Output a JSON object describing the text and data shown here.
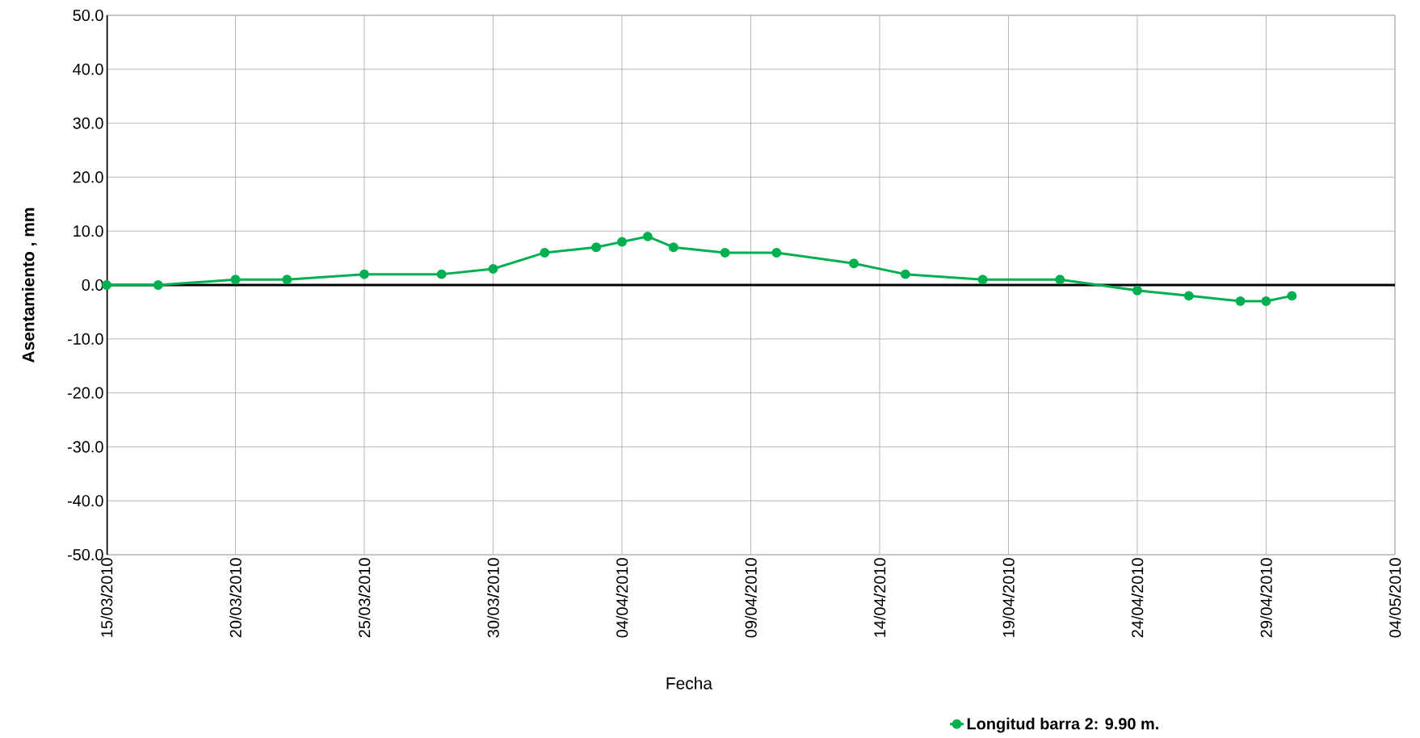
{
  "chart_data": {
    "type": "line",
    "xlabel": "Fecha",
    "ylabel": "Asentamiento , mm",
    "series": [
      {
        "name": "**Longitud barra 2: 9.90 m.**",
        "color": "#00b050",
        "x": [
          "2010-03-15",
          "2010-03-17",
          "2010-03-20",
          "2010-03-22",
          "2010-03-25",
          "2010-03-28",
          "2010-03-30",
          "2010-04-01",
          "2010-04-03",
          "2010-04-04",
          "2010-04-05",
          "2010-04-06",
          "2010-04-08",
          "2010-04-10",
          "2010-04-13",
          "2010-04-15",
          "2010-04-18",
          "2010-04-21",
          "2010-04-24",
          "2010-04-26",
          "2010-04-28",
          "2010-04-29",
          "2010-04-30"
        ],
        "values": [
          0,
          0,
          1,
          1,
          2,
          2,
          3,
          6,
          7,
          8,
          9,
          7,
          6,
          6,
          4,
          2,
          1,
          1,
          -1,
          -2,
          -3,
          -3,
          -2
        ]
      }
    ],
    "xlim": [
      "2010-03-15",
      "2010-05-04"
    ],
    "xticks": [
      {
        "value": "2010-03-15",
        "label": "15/03/2010"
      },
      {
        "value": "2010-03-20",
        "label": "20/03/2010"
      },
      {
        "value": "2010-03-25",
        "label": "25/03/2010"
      },
      {
        "value": "2010-03-30",
        "label": "30/03/2010"
      },
      {
        "value": "2010-04-04",
        "label": "04/04/2010"
      },
      {
        "value": "2010-04-09",
        "label": "09/04/2010"
      },
      {
        "value": "2010-04-14",
        "label": "14/04/2010"
      },
      {
        "value": "2010-04-19",
        "label": "19/04/2010"
      },
      {
        "value": "2010-04-24",
        "label": "24/04/2010"
      },
      {
        "value": "2010-04-29",
        "label": "29/04/2010"
      },
      {
        "value": "2010-05-04",
        "label": "04/05/2010"
      }
    ],
    "ylim": [
      -50,
      50
    ],
    "yticks": [
      {
        "value": -50,
        "label": "-50.0"
      },
      {
        "value": -40,
        "label": "-40.0"
      },
      {
        "value": -30,
        "label": "-30.0"
      },
      {
        "value": -20,
        "label": "-20.0"
      },
      {
        "value": -10,
        "label": "-10.0"
      },
      {
        "value": 0,
        "label": "0.0"
      },
      {
        "value": 10,
        "label": "10.0"
      },
      {
        "value": 20,
        "label": "20.0"
      },
      {
        "value": 30,
        "label": "30.0"
      },
      {
        "value": 40,
        "label": "40.0"
      },
      {
        "value": 50,
        "label": "50.0"
      }
    ],
    "grid": true,
    "legend": "bottom",
    "marker": "circle",
    "line_style": "solid"
  }
}
